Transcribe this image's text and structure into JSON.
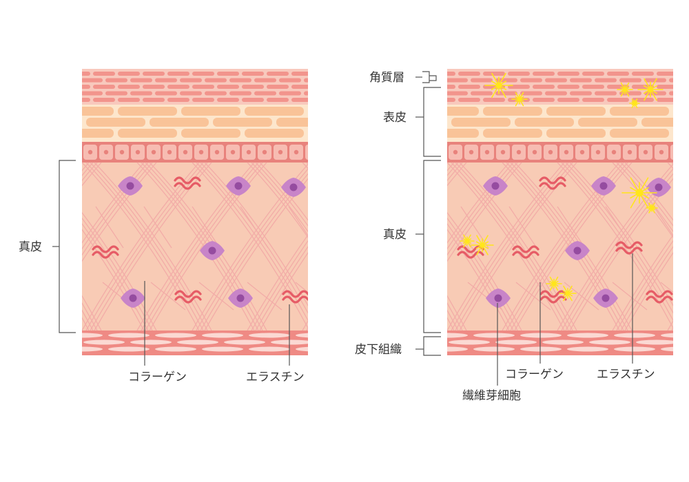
{
  "left_diagram": {
    "labels": {
      "dermis": "真皮",
      "collagen": "コラーゲン",
      "elastin": "エラスチン"
    }
  },
  "right_diagram": {
    "labels": {
      "stratum_corneum": "角質層",
      "epidermis": "表皮",
      "dermis": "真皮",
      "subcutaneous_tissue": "皮下組織",
      "fibroblast": "繊維芽細胞",
      "collagen": "コラーゲン",
      "elastin": "エラスチン"
    }
  },
  "colors": {
    "horny_layer_bg": "#f8c9bd",
    "horny_cell": "#f2948c",
    "epidermis_bg": "#fde6cc",
    "epidermis_cell": "#f9c398",
    "basal_cell": "#f7bcb2",
    "basal_nucleus": "#e8827c",
    "dermis_bg": "#f8cbb5",
    "fiber": "#f2a9a6",
    "subcutaneous_bg": "#ef8a84",
    "fat_cell": "#fbd9d3",
    "fibroblast": "#c884c8",
    "fibroblast_nucleus": "#954ca0",
    "elastin": "#e65c66",
    "damage_spark": "#ffe61a",
    "line": "#555555"
  }
}
